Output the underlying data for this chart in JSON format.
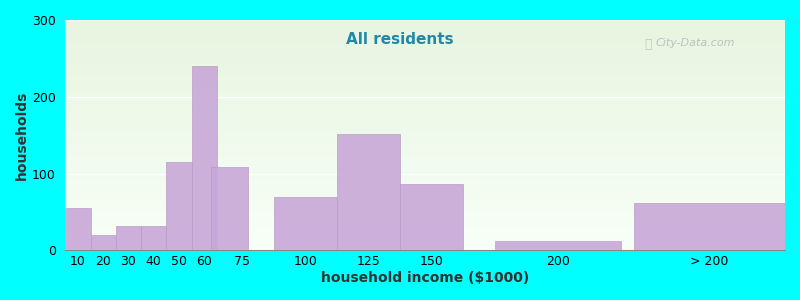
{
  "subtitle": "All residents",
  "xlabel": "household income ($1000)",
  "ylabel": "households",
  "background_color": "#00FFFF",
  "plot_bg_gradient_top": "#e8f5e0",
  "plot_bg_gradient_bottom": "#f8fff8",
  "bar_color": "#c8a8d8",
  "bar_edge_color": "#b898c8",
  "ylim": [
    0,
    300
  ],
  "yticks": [
    0,
    100,
    200,
    300
  ],
  "xlim": [
    5,
    290
  ],
  "xtick_positions": [
    10,
    20,
    30,
    40,
    50,
    60,
    75,
    100,
    125,
    150,
    200
  ],
  "xtick_labels": [
    "10",
    "20",
    "30",
    "40",
    "50",
    "60",
    "75",
    "100",
    "125",
    "150",
    "200"
  ],
  "gt200_label": "> 200",
  "bar_lefts": [
    5,
    15,
    25,
    35,
    45,
    55,
    62.5,
    87.5,
    112.5,
    137.5,
    175,
    230
  ],
  "bar_widths": [
    10,
    10,
    10,
    10,
    10,
    10,
    15,
    25,
    25,
    25,
    50,
    60
  ],
  "values": [
    55,
    20,
    32,
    32,
    115,
    240,
    108,
    70,
    152,
    87,
    12,
    62
  ],
  "title_fontsize": 13,
  "subtitle_fontsize": 11,
  "axis_label_fontsize": 10,
  "tick_fontsize": 9,
  "watermark_text": "City-Data.com"
}
